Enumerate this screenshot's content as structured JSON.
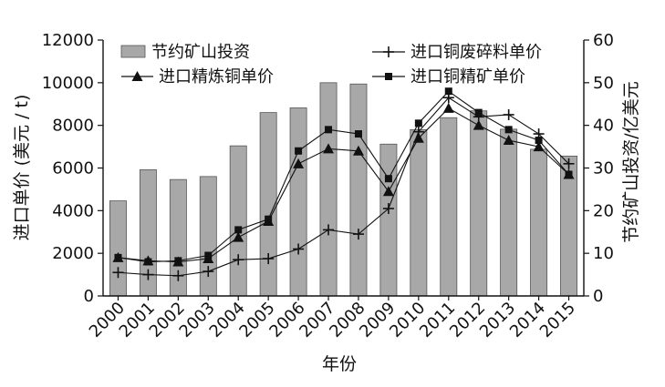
{
  "chart_data": {
    "type": "bar+line",
    "categories": [
      "2000",
      "2001",
      "2002",
      "2003",
      "2004",
      "2005",
      "2006",
      "2007",
      "2008",
      "2009",
      "2010",
      "2011",
      "2012",
      "2013",
      "2014",
      "2015"
    ],
    "xlabel": "年份",
    "ylabel_left": "进口单价 (美元 / t)",
    "ylabel_right": "节约矿山投资/亿美元",
    "ylim_left": [
      0,
      12000
    ],
    "ylim_right": [
      0,
      60
    ],
    "yticks_left": [
      "0",
      "2000",
      "4000",
      "6000",
      "8000",
      "10000",
      "12000"
    ],
    "yticks_right": [
      "0",
      "10",
      "20",
      "30",
      "40",
      "50",
      "60"
    ],
    "bars": {
      "name": "节约矿山投资",
      "axis": "right",
      "color": "#a8a8a8",
      "values": [
        22.3,
        29.6,
        27.3,
        28.0,
        35.2,
        43.0,
        44.1,
        50.0,
        49.7,
        35.6,
        39.0,
        41.8,
        43.4,
        39.1,
        34.4,
        32.8
      ]
    },
    "series": [
      {
        "name": "进口铜废碎料单价",
        "axis": "left",
        "marker": "plus",
        "values": [
          1100,
          1000,
          950,
          1150,
          1700,
          1750,
          2200,
          3100,
          2900,
          4100,
          7700,
          9300,
          8400,
          8500,
          7600,
          6200
        ]
      },
      {
        "name": "进口精炼铜单价",
        "axis": "left",
        "marker": "triangle",
        "values": [
          1800,
          1650,
          1600,
          1750,
          2750,
          3500,
          6200,
          6900,
          6800,
          4900,
          7400,
          8800,
          8000,
          7300,
          7000,
          5700
        ]
      },
      {
        "name": "进口铜精矿单价",
        "axis": "left",
        "marker": "square",
        "values": [
          1800,
          1600,
          1650,
          1900,
          3100,
          3600,
          6800,
          7800,
          7600,
          5500,
          8100,
          9600,
          8600,
          7800,
          7300,
          5700
        ]
      }
    ],
    "legend_position": "top"
  }
}
